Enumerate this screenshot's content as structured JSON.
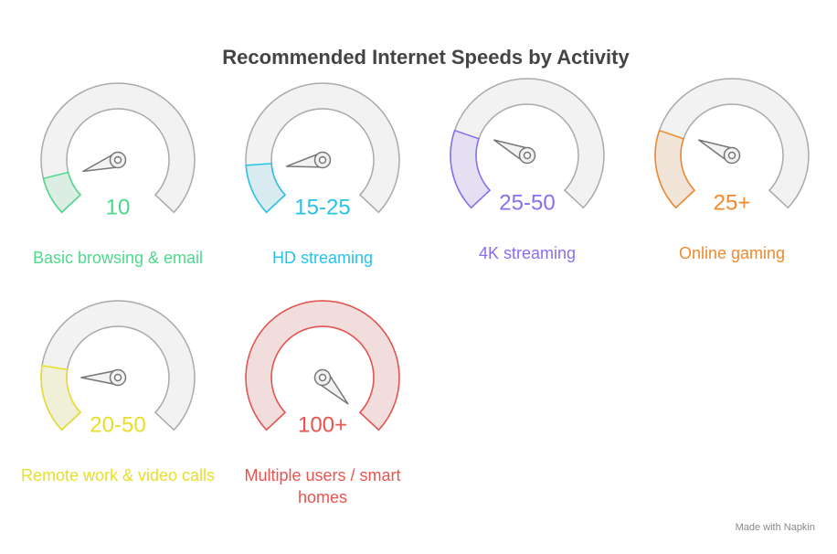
{
  "title": "Recommended Internet Speeds by Activity",
  "gauges": [
    {
      "value": "10",
      "label": "Basic browsing & email",
      "color": "#4cd98a"
    },
    {
      "value": "15-25",
      "label": "HD streaming",
      "color": "#27c3e6"
    },
    {
      "value": "25-50",
      "label": "4K streaming",
      "color": "#8a6ef0"
    },
    {
      "value": "25+",
      "label": "Online gaming",
      "color": "#f08a2e"
    },
    {
      "value": "20-50",
      "label": "Remote work & video calls",
      "color": "#e8de28"
    },
    {
      "value": "100+",
      "label": "Multiple users / smart homes",
      "color": "#e8534f"
    }
  ],
  "footer": "Made with Napkin"
}
